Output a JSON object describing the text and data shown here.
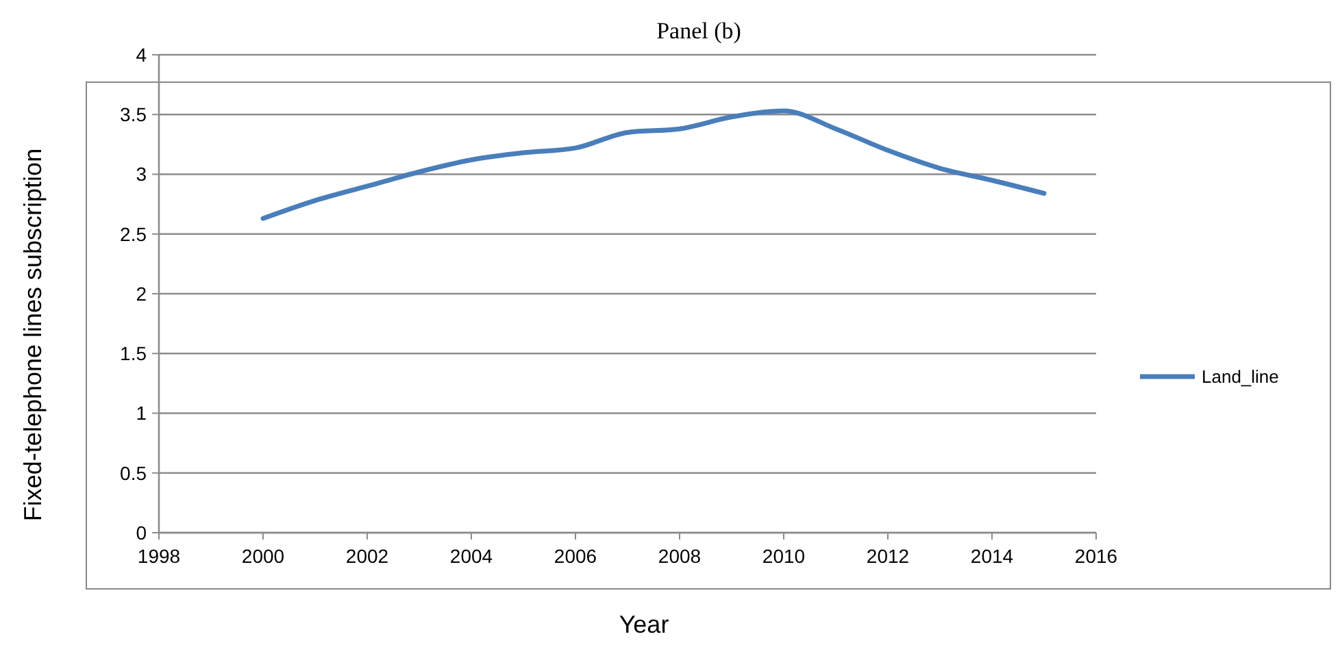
{
  "chart_data": {
    "type": "line",
    "title": "Panel (b)",
    "xlabel": "Year",
    "ylabel": "Fixed-telephone lines subscription",
    "x": [
      2000,
      2001,
      2002,
      2003,
      2004,
      2005,
      2006,
      2007,
      2008,
      2009,
      2010,
      2011,
      2012,
      2013,
      2014,
      2015
    ],
    "series": [
      {
        "name": "Land_line",
        "color": "#4a7ebb",
        "values": [
          2.63,
          2.78,
          2.9,
          3.02,
          3.12,
          3.18,
          3.22,
          3.35,
          3.38,
          3.48,
          3.53,
          3.38,
          3.2,
          3.05,
          2.95,
          2.84
        ]
      }
    ],
    "xlim": [
      1998,
      2016
    ],
    "xticks": [
      1998,
      2000,
      2002,
      2004,
      2006,
      2008,
      2010,
      2012,
      2014,
      2016
    ],
    "ylim": [
      0,
      4
    ],
    "yticks": [
      0,
      0.5,
      1,
      1.5,
      2,
      2.5,
      3,
      3.5,
      4
    ],
    "grid": "y",
    "legend": "right",
    "marker": "none",
    "line_style": "solid"
  }
}
